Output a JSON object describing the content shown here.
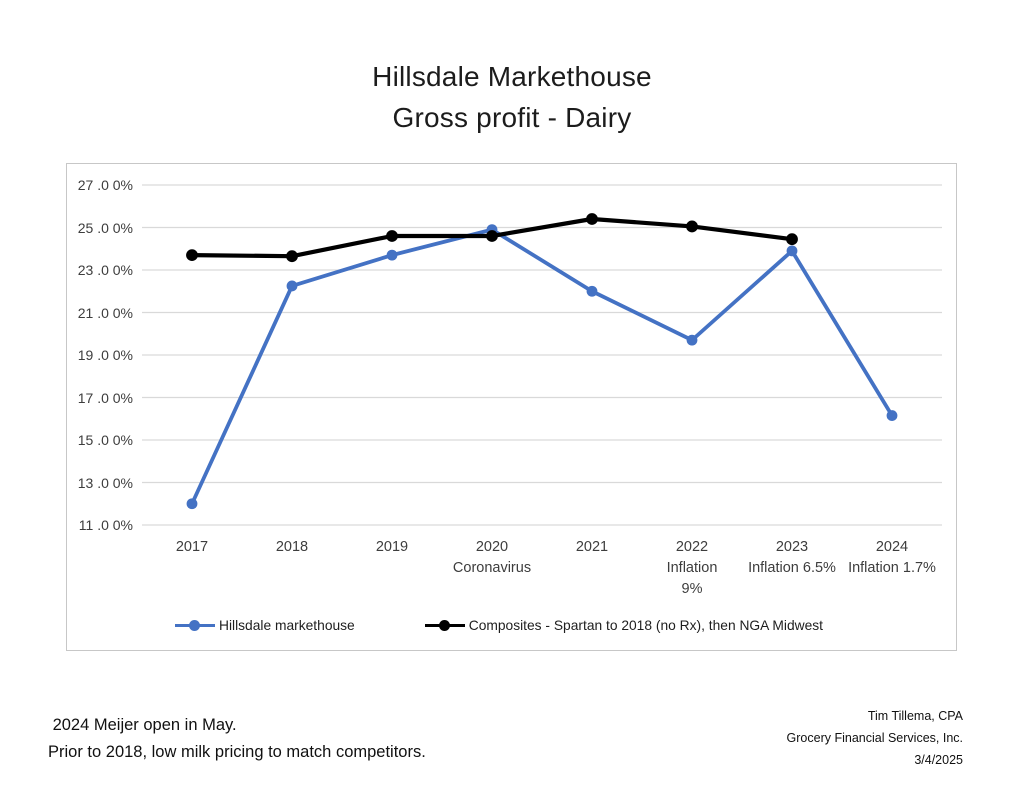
{
  "chart_data": {
    "type": "line",
    "title": "Hillsdale Markethouse",
    "subtitle": "Gross profit - Dairy",
    "categories": [
      "2017",
      "2018",
      "2019",
      "2020",
      "2021",
      "2022",
      "2023",
      "2024"
    ],
    "x_tick_labels": [
      [
        "2017"
      ],
      [
        "2018"
      ],
      [
        "2019"
      ],
      [
        "2020",
        "Coronavirus"
      ],
      [
        "2021"
      ],
      [
        "2022",
        "Inflation",
        "9%"
      ],
      [
        "2023",
        "Inflation 6.5%"
      ],
      [
        "2024",
        "Inflation 1.7%"
      ]
    ],
    "y_tick_labels": [
      "27 .0 0%",
      "25 .0 0%",
      "23 .0 0%",
      "21 .0 0%",
      "19 .0 0%",
      "17 .0 0%",
      "15 .0 0%",
      "13 .0 0%",
      "11 .0 0%"
    ],
    "ylim": [
      11,
      27
    ],
    "y_step": 2,
    "grid": true,
    "gridline_color": "#d9d9d9",
    "legend_position": "bottom-inside",
    "series": [
      {
        "name": "Hillsdale markethouse",
        "color": "#4472C4",
        "values": [
          12.0,
          22.25,
          23.7,
          24.9,
          22.0,
          19.7,
          23.9,
          16.15
        ]
      },
      {
        "name": "Composites - Spartan to 2018 (no Rx), then NGA Midwest",
        "color": "#000000",
        "values": [
          23.7,
          23.65,
          24.6,
          24.6,
          25.4,
          25.05,
          24.45,
          null
        ]
      }
    ]
  },
  "notes": {
    "line1": " 2024 Meijer open in May.",
    "line2": "Prior to 2018, low milk pricing to match competitors."
  },
  "credits": {
    "line1": "Tim Tillema, CPA",
    "line2": "Grocery Financial Services, Inc.",
    "line3": "3/4/2025"
  }
}
